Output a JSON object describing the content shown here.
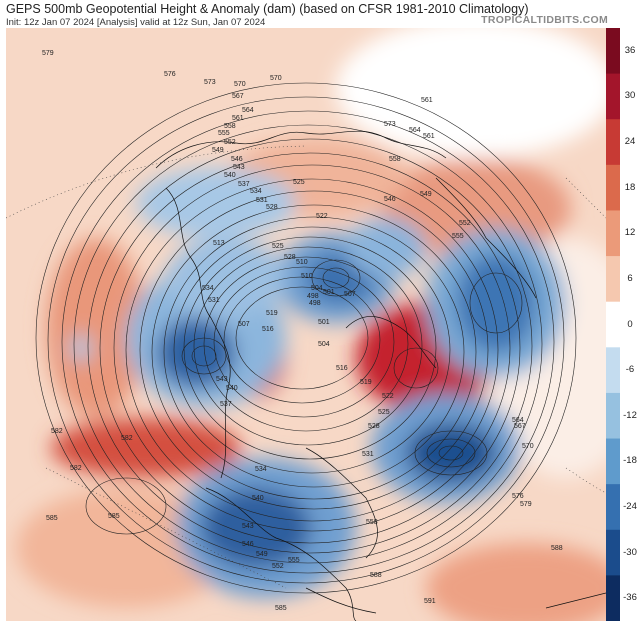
{
  "header": {
    "title": "GEPS 500mb Geopotential Height & Anomaly (dam) (based on CFSR 1981-2010 Climatology)",
    "subtitle": "Init: 12z Jan 07 2024   [Analysis]   valid at 12z Sun, Jan 07 2024",
    "brand": "TROPICALTIDBITS.COM"
  },
  "colorbar": {
    "labels": [
      "36",
      "30",
      "24",
      "18",
      "12",
      "6",
      "0",
      "-6",
      "-12",
      "-18",
      "-24",
      "-30",
      "-36"
    ],
    "colors": [
      "#7a0b1f",
      "#a3152b",
      "#c73a34",
      "#db6a4c",
      "#eb9a79",
      "#f5c8af",
      "#ffffff",
      "#c4dcef",
      "#96c1e0",
      "#5f9bcc",
      "#3570b0",
      "#1b4c8c",
      "#0d2c60"
    ]
  },
  "map": {
    "contour_labels": [
      "585",
      "585",
      "582",
      "582",
      "579",
      "576",
      "573",
      "570",
      "567",
      "564",
      "561",
      "558",
      "555",
      "552",
      "549",
      "546",
      "543",
      "540",
      "537",
      "534",
      "531",
      "528",
      "525",
      "522",
      "519",
      "516",
      "513",
      "510",
      "507",
      "504",
      "501",
      "498",
      "582",
      "588",
      "591",
      "588",
      "585",
      "579",
      "576",
      "573",
      "570",
      "564",
      "561",
      "558",
      "555",
      "552",
      "549",
      "546",
      "543",
      "540",
      "534",
      "531",
      "528",
      "525",
      "522",
      "519",
      "516",
      "510",
      "507",
      "504",
      "501",
      "498",
      "570",
      "567",
      "564",
      "561",
      "558",
      "555",
      "552",
      "549",
      "546",
      "543",
      "540",
      "537",
      "534",
      "531",
      "528",
      "525"
    ]
  }
}
